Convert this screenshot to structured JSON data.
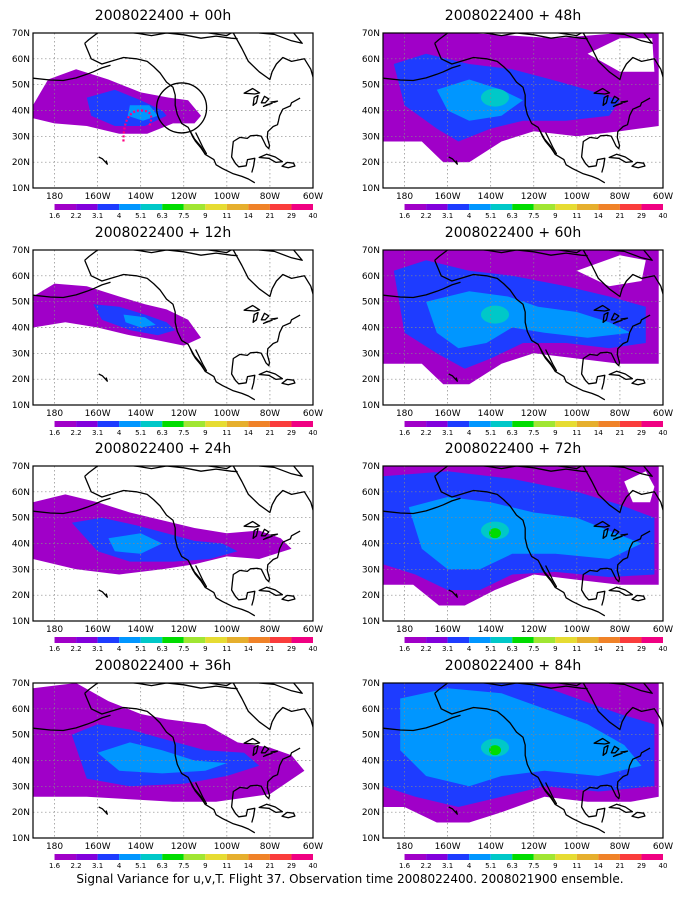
{
  "panels": [
    {
      "id": "p00",
      "title": "2008022400 + 00h",
      "lead": 0
    },
    {
      "id": "p12",
      "title": "2008022400 + 12h",
      "lead": 12
    },
    {
      "id": "p24",
      "title": "2008022400 + 24h",
      "lead": 24
    },
    {
      "id": "p36",
      "title": "2008022400 + 36h",
      "lead": 36
    },
    {
      "id": "p48",
      "title": "2008022400 + 48h",
      "lead": 48
    },
    {
      "id": "p60",
      "title": "2008022400 + 60h",
      "lead": 60
    },
    {
      "id": "p72",
      "title": "2008022400 + 72h",
      "lead": 72
    },
    {
      "id": "p84",
      "title": "2008022400 + 84h",
      "lead": 84
    }
  ],
  "axes": {
    "lat_labels": [
      "10N",
      "20N",
      "30N",
      "40N",
      "50N",
      "60N",
      "70N"
    ],
    "lon_labels": [
      "180",
      "160W",
      "140W",
      "120W",
      "100W",
      "80W",
      "60W"
    ],
    "lat_range": [
      10,
      70
    ],
    "lon_range": [
      -190,
      -60
    ]
  },
  "colorbar": {
    "levels": [
      "1.6",
      "2.2",
      "3.1",
      "4",
      "5.1",
      "6.3",
      "7.5",
      "9",
      "11",
      "14",
      "21",
      "29",
      "40"
    ],
    "colors": [
      "#ffffff",
      "#a000c8",
      "#8200dc",
      "#1e3cff",
      "#0096ff",
      "#00c8c8",
      "#00dc00",
      "#a0e632",
      "#e6dc32",
      "#e6af2d",
      "#f08228",
      "#fa3c3c",
      "#f00082"
    ]
  },
  "footer": "Signal Variance for u,v,T. Flight 37. Observation time 2008022400. 2008021900 ensemble."
}
